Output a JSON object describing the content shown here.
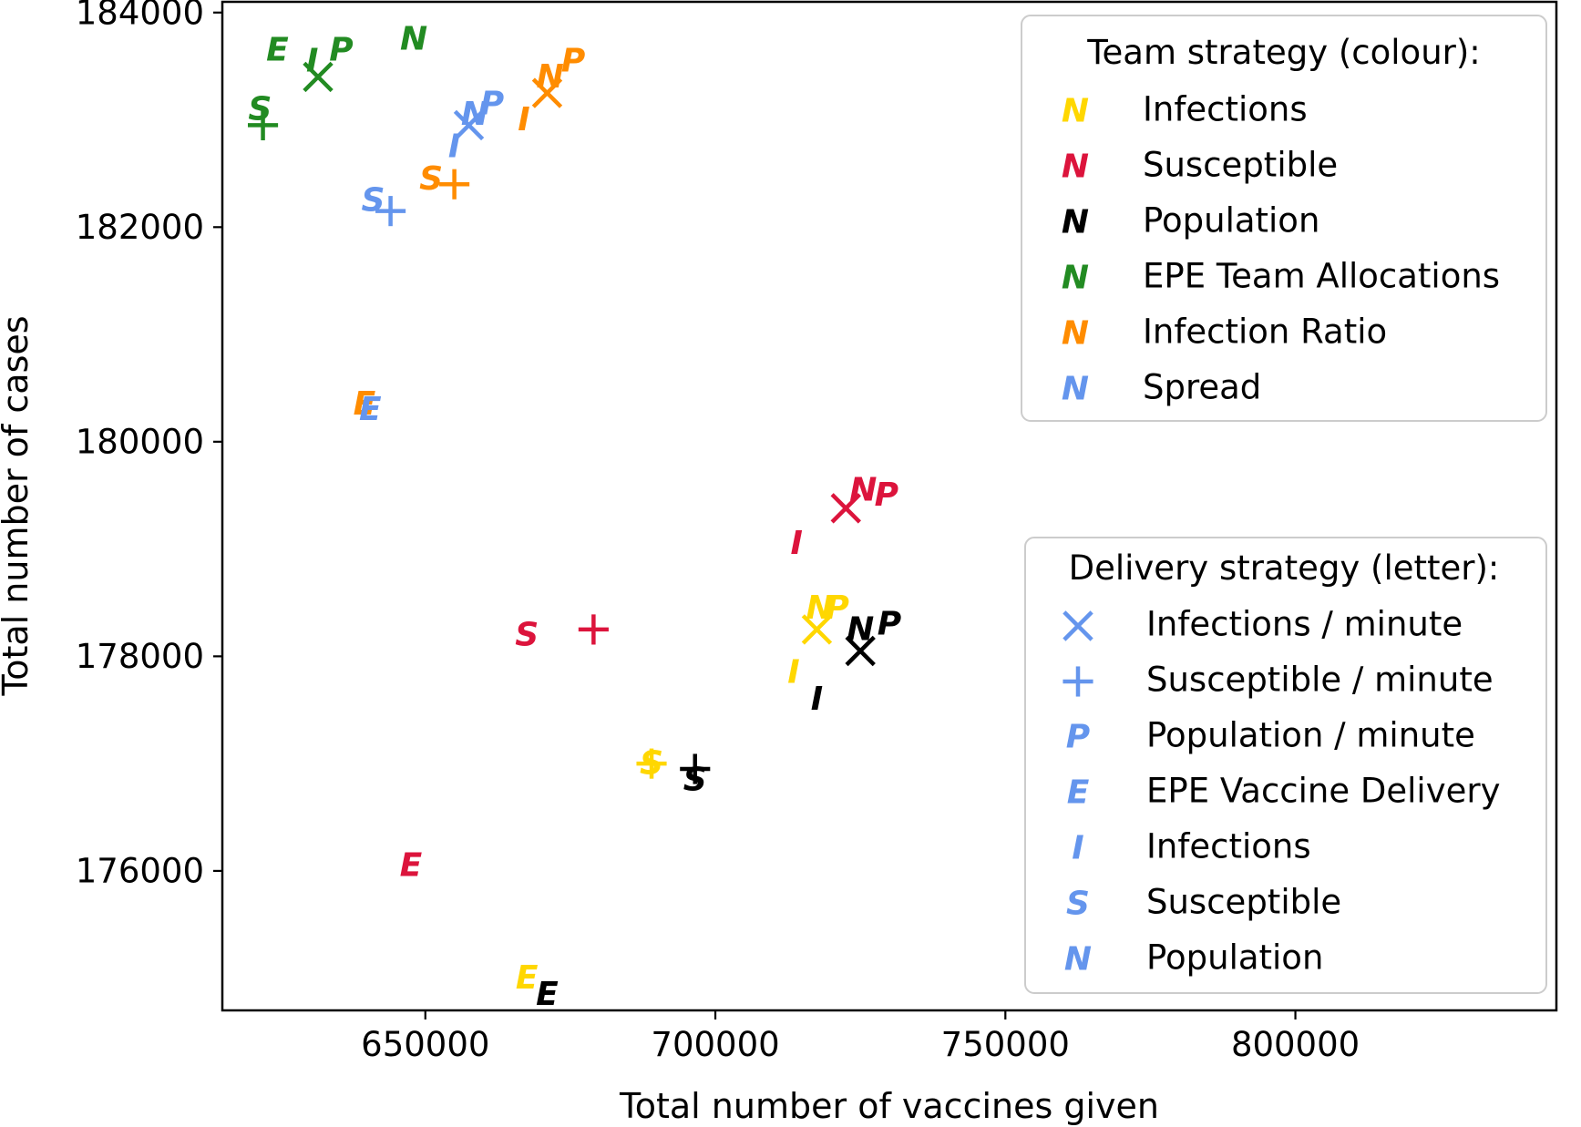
{
  "chart_data": {
    "type": "scatter",
    "xlabel": "Total number of vaccines given",
    "ylabel": "Total number of cases",
    "xlim": [
      615000,
      845000
    ],
    "ylim": [
      174700,
      184100
    ],
    "x_ticks": [
      650000,
      700000,
      750000,
      800000
    ],
    "x_tick_labels": [
      "650000",
      "700000",
      "750000",
      "800000"
    ],
    "y_ticks": [
      176000,
      178000,
      180000,
      182000,
      184000
    ],
    "y_tick_labels": [
      "176000",
      "178000",
      "180000",
      "182000",
      "184000"
    ],
    "grid": false,
    "team_legend": {
      "title": "Team strategy (colour):",
      "placement": "top-right",
      "glyph": "N",
      "entries": [
        {
          "label": "Infections",
          "color": "#FFD700"
        },
        {
          "label": "Susceptible",
          "color": "#DC143C"
        },
        {
          "label": "Population",
          "color": "#000000"
        },
        {
          "label": "EPE Team Allocations",
          "color": "#228B22"
        },
        {
          "label": "Infection Ratio",
          "color": "#FF8C00"
        },
        {
          "label": "Spread",
          "color": "#6495ED"
        }
      ]
    },
    "delivery_legend": {
      "title": "Delivery strategy (letter):",
      "placement": "lower-right",
      "color": "#6495ED",
      "entries": [
        {
          "marker": "×",
          "label": "Infections / minute"
        },
        {
          "marker": "+",
          "label": "Susceptible / minute"
        },
        {
          "marker": "P",
          "label": "Population / minute"
        },
        {
          "marker": "E",
          "label": "EPE Vaccine Delivery"
        },
        {
          "marker": "I",
          "label": "Infections"
        },
        {
          "marker": "S",
          "label": "Susceptible"
        },
        {
          "marker": "N",
          "label": "Population"
        }
      ]
    },
    "series": [
      {
        "name": "Infections",
        "color": "#FFD700",
        "points": [
          {
            "m": "×",
            "x": 717500,
            "y": 178250
          },
          {
            "m": "+",
            "x": 689000,
            "y": 177000
          },
          {
            "m": "N",
            "x": 718000,
            "y": 178450
          },
          {
            "m": "P",
            "x": 721000,
            "y": 178450
          },
          {
            "m": "E",
            "x": 667500,
            "y": 175000
          },
          {
            "m": "I",
            "x": 713500,
            "y": 177850
          },
          {
            "m": "S",
            "x": 689000,
            "y": 177000
          }
        ]
      },
      {
        "name": "Susceptible",
        "color": "#DC143C",
        "points": [
          {
            "m": "×",
            "x": 722500,
            "y": 179380
          },
          {
            "m": "+",
            "x": 679000,
            "y": 178250
          },
          {
            "m": "N",
            "x": 725500,
            "y": 179550
          },
          {
            "m": "P",
            "x": 729500,
            "y": 179500
          },
          {
            "m": "E",
            "x": 647500,
            "y": 176050
          },
          {
            "m": "I",
            "x": 714000,
            "y": 179050
          },
          {
            "m": "S",
            "x": 667500,
            "y": 178200
          }
        ]
      },
      {
        "name": "Population",
        "color": "#000000",
        "points": [
          {
            "m": "×",
            "x": 725000,
            "y": 178050
          },
          {
            "m": "+",
            "x": 696500,
            "y": 176950
          },
          {
            "m": "N",
            "x": 725000,
            "y": 178250
          },
          {
            "m": "P",
            "x": 730000,
            "y": 178300
          },
          {
            "m": "E",
            "x": 671000,
            "y": 174850
          },
          {
            "m": "I",
            "x": 717500,
            "y": 177600
          },
          {
            "m": "S",
            "x": 696500,
            "y": 176850
          }
        ]
      },
      {
        "name": "EPE Team Allocations",
        "color": "#228B22",
        "points": [
          {
            "m": "×",
            "x": 631500,
            "y": 183400
          },
          {
            "m": "+",
            "x": 622000,
            "y": 182950
          },
          {
            "m": "N",
            "x": 648000,
            "y": 183750
          },
          {
            "m": "P",
            "x": 635500,
            "y": 183650
          },
          {
            "m": "E",
            "x": 624500,
            "y": 183650
          },
          {
            "m": "I",
            "x": 630500,
            "y": 183550
          },
          {
            "m": "S",
            "x": 621500,
            "y": 183100
          }
        ]
      },
      {
        "name": "Infection Ratio",
        "color": "#FF8C00",
        "points": [
          {
            "m": "×",
            "x": 671000,
            "y": 183250
          },
          {
            "m": "+",
            "x": 655000,
            "y": 182400
          },
          {
            "m": "N",
            "x": 671500,
            "y": 183400
          },
          {
            "m": "P",
            "x": 675500,
            "y": 183550
          },
          {
            "m": "E",
            "x": 639500,
            "y": 180350
          },
          {
            "m": "I",
            "x": 667000,
            "y": 183000
          },
          {
            "m": "S",
            "x": 651000,
            "y": 182450
          }
        ]
      },
      {
        "name": "Spread",
        "color": "#6495ED",
        "points": [
          {
            "m": "×",
            "x": 657500,
            "y": 182950
          },
          {
            "m": "+",
            "x": 644000,
            "y": 182150
          },
          {
            "m": "N",
            "x": 658500,
            "y": 183050
          },
          {
            "m": "P",
            "x": 661500,
            "y": 183150
          },
          {
            "m": "E",
            "x": 640500,
            "y": 180300
          },
          {
            "m": "I",
            "x": 655000,
            "y": 182750
          },
          {
            "m": "S",
            "x": 641000,
            "y": 182250
          }
        ]
      }
    ]
  }
}
